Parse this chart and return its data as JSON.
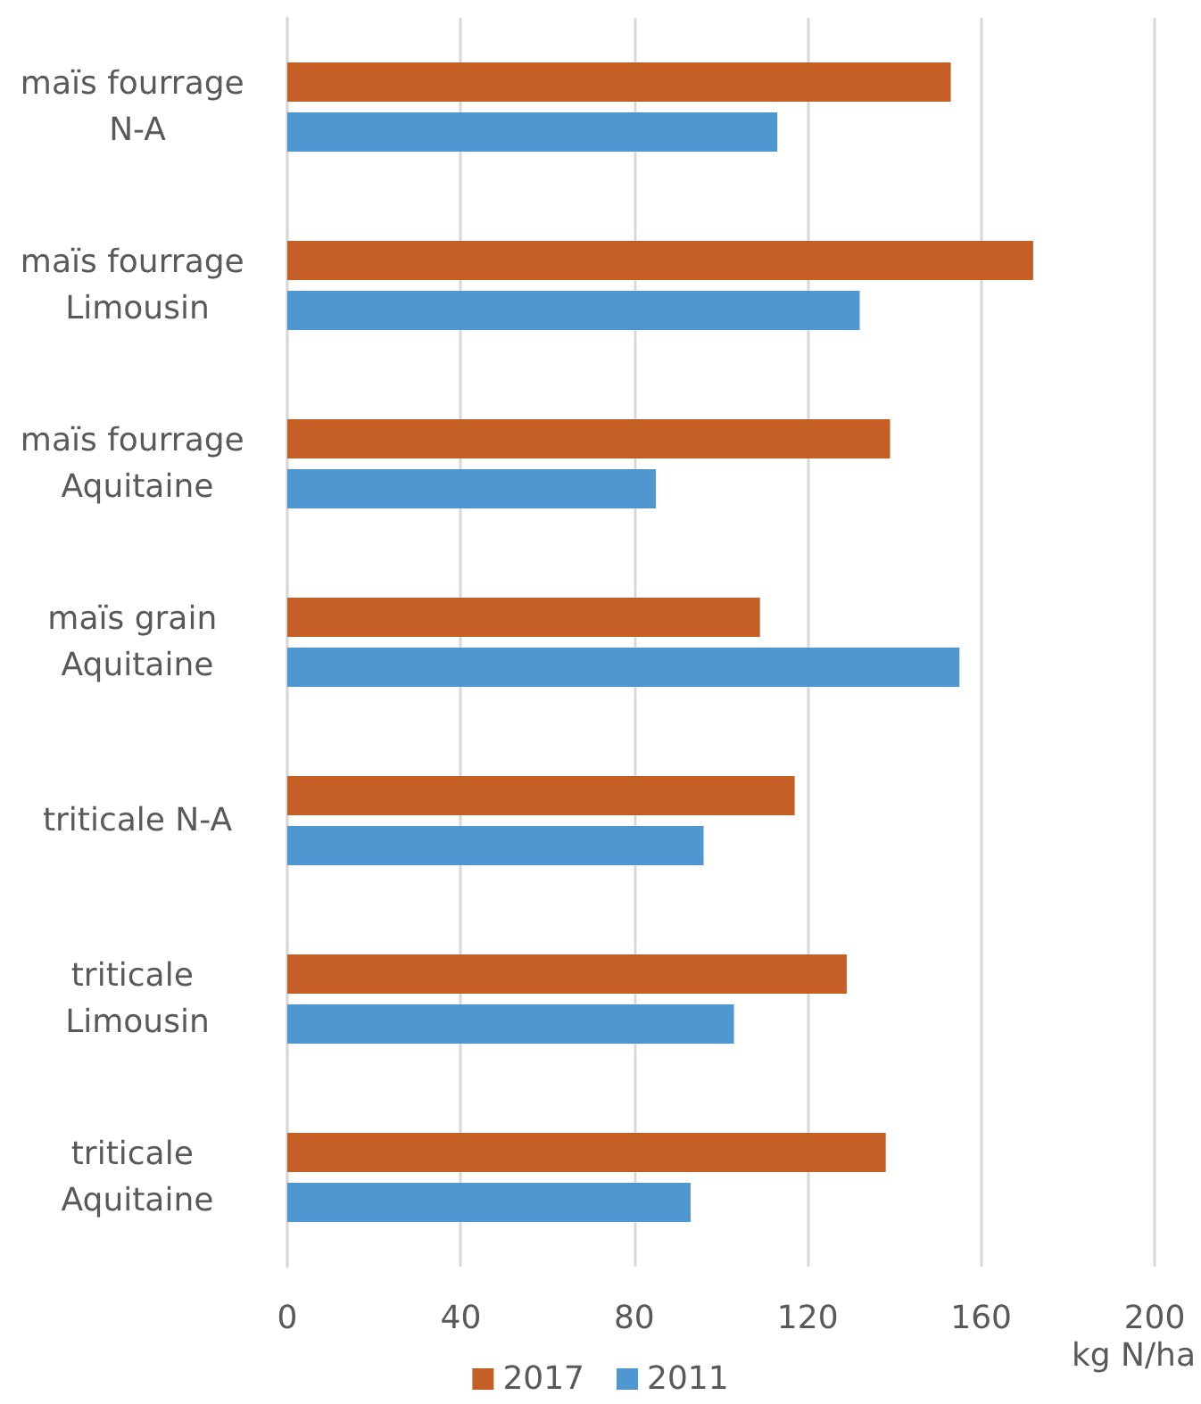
{
  "chart_data": {
    "type": "bar",
    "orientation": "horizontal",
    "categories": [
      "maïs fourrage N-A",
      "maïs fourrage Limousin",
      "maïs fourrage Aquitaine",
      "maïs grain Aquitaine",
      "triticale N-A",
      "triticale Limousin",
      "triticale Aquitaine"
    ],
    "series": [
      {
        "name": "2017",
        "color": "#c55f26",
        "values": [
          153,
          172,
          139,
          109,
          117,
          129,
          138
        ]
      },
      {
        "name": "2011",
        "color": "#4f97d1",
        "values": [
          113,
          132,
          85,
          155,
          96,
          103,
          93
        ]
      }
    ],
    "xlabel": "kg N/ha",
    "xlim": [
      0,
      200
    ],
    "xticks": [
      0,
      40,
      80,
      120,
      160,
      200
    ],
    "grid": "x",
    "legend": "bottom"
  }
}
